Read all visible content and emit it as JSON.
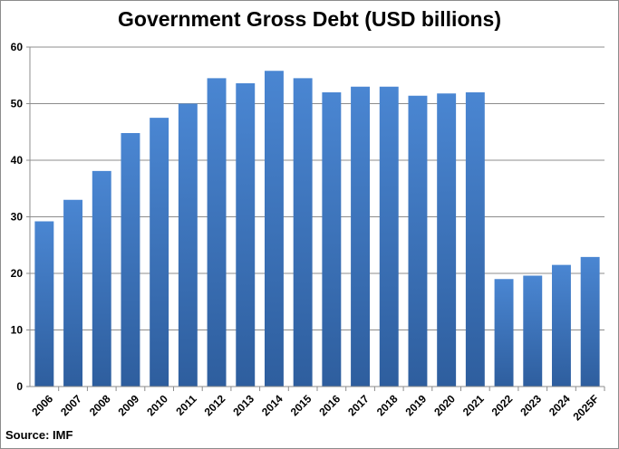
{
  "chart_data": {
    "type": "bar",
    "title": "Government Gross Debt (USD billions)",
    "source": "Source: IMF",
    "categories": [
      "2006",
      "2007",
      "2008",
      "2009",
      "2010",
      "2011",
      "2012",
      "2013",
      "2014",
      "2015",
      "2016",
      "2017",
      "2018",
      "2019",
      "2020",
      "2021",
      "2022",
      "2023",
      "2024",
      "2025F"
    ],
    "series": [
      {
        "values": [
          29.2,
          33.0,
          38.1,
          44.8,
          47.5,
          50.0,
          54.5,
          53.6,
          55.8,
          54.5,
          52.0,
          53.0,
          53.0,
          51.4,
          51.8,
          52.0,
          19.0,
          19.6,
          21.5,
          22.9
        ]
      }
    ],
    "yticks": [
      "0",
      "10",
      "20",
      "30",
      "40",
      "50",
      "60"
    ],
    "ylim": [
      0,
      60
    ],
    "grid": true,
    "colors": {
      "bar_top": "#4a86d2",
      "bar_bottom": "#2e5e9e",
      "grid": "#8c8c8c",
      "axis": "#8c8c8c"
    }
  }
}
